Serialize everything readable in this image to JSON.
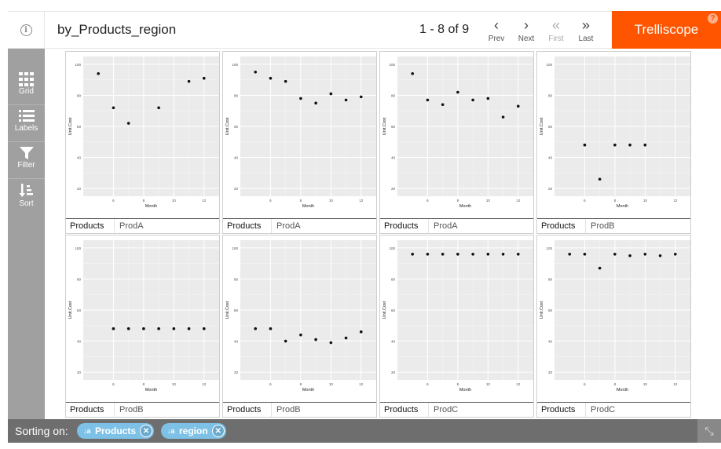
{
  "header": {
    "info_icon": "info-icon",
    "title": "by_Products_region",
    "pagination": "1 - 8 of 9",
    "nav": [
      {
        "name": "prev",
        "glyph": "‹",
        "label": "Prev",
        "enabled": true
      },
      {
        "name": "next",
        "glyph": "›",
        "label": "Next",
        "enabled": true
      },
      {
        "name": "first",
        "glyph": "«",
        "label": "First",
        "enabled": false
      },
      {
        "name": "last",
        "glyph": "»",
        "label": "Last",
        "enabled": true
      }
    ],
    "brand": "Trelliscope",
    "help": "?"
  },
  "sidebar": {
    "items": [
      {
        "name": "grid",
        "icon": "grid-icon",
        "label": "Grid"
      },
      {
        "name": "labels",
        "icon": "list-icon",
        "label": "Labels"
      },
      {
        "name": "filter",
        "icon": "filter-icon",
        "label": "Filter"
      },
      {
        "name": "sort",
        "icon": "sort-icon",
        "label": "Sort"
      }
    ]
  },
  "panels": [
    {
      "label_key": "Products",
      "label_value": "ProdA"
    },
    {
      "label_key": "Products",
      "label_value": "ProdA"
    },
    {
      "label_key": "Products",
      "label_value": "ProdA"
    },
    {
      "label_key": "Products",
      "label_value": "ProdB"
    },
    {
      "label_key": "Products",
      "label_value": "ProdB"
    },
    {
      "label_key": "Products",
      "label_value": "ProdB"
    },
    {
      "label_key": "Products",
      "label_value": "ProdC"
    },
    {
      "label_key": "Products",
      "label_value": "ProdC"
    }
  ],
  "chart_data": [
    {
      "type": "scatter",
      "xlabel": "Month",
      "ylabel": "Unit.Cost",
      "xlim": [
        4,
        13
      ],
      "ylim": [
        15,
        105
      ],
      "xticks": [
        6,
        8,
        10,
        12
      ],
      "yticks": [
        20,
        40,
        60,
        80,
        100
      ],
      "grid": true,
      "points": [
        [
          5,
          94
        ],
        [
          6,
          72
        ],
        [
          7,
          62
        ],
        [
          9,
          72
        ],
        [
          11,
          89
        ],
        [
          12,
          91
        ]
      ]
    },
    {
      "type": "scatter",
      "xlabel": "Month",
      "ylabel": "Unit.Cost",
      "xlim": [
        4,
        13
      ],
      "ylim": [
        15,
        105
      ],
      "xticks": [
        6,
        8,
        10,
        12
      ],
      "yticks": [
        20,
        40,
        60,
        80,
        100
      ],
      "grid": true,
      "points": [
        [
          5,
          95
        ],
        [
          6,
          91
        ],
        [
          7,
          89
        ],
        [
          8,
          78
        ],
        [
          9,
          75
        ],
        [
          10,
          81
        ],
        [
          11,
          77
        ],
        [
          12,
          79
        ]
      ]
    },
    {
      "type": "scatter",
      "xlabel": "Month",
      "ylabel": "Unit.Cost",
      "xlim": [
        4,
        13
      ],
      "ylim": [
        15,
        105
      ],
      "xticks": [
        6,
        8,
        10,
        12
      ],
      "yticks": [
        20,
        40,
        60,
        80,
        100
      ],
      "grid": true,
      "points": [
        [
          5,
          94
        ],
        [
          6,
          77
        ],
        [
          7,
          74
        ],
        [
          8,
          82
        ],
        [
          9,
          77
        ],
        [
          10,
          78
        ],
        [
          11,
          66
        ],
        [
          12,
          73
        ]
      ]
    },
    {
      "type": "scatter",
      "xlabel": "Month",
      "ylabel": "Unit.Cost",
      "xlim": [
        4,
        13
      ],
      "ylim": [
        15,
        105
      ],
      "xticks": [
        6,
        8,
        10,
        12
      ],
      "yticks": [
        20,
        40,
        60,
        80,
        100
      ],
      "grid": true,
      "points": [
        [
          6,
          48
        ],
        [
          7,
          26
        ],
        [
          8,
          48
        ],
        [
          9,
          48
        ],
        [
          10,
          48
        ]
      ]
    },
    {
      "type": "scatter",
      "xlabel": "Month",
      "ylabel": "Unit.Cost",
      "xlim": [
        4,
        13
      ],
      "ylim": [
        15,
        105
      ],
      "xticks": [
        6,
        8,
        10,
        12
      ],
      "yticks": [
        20,
        40,
        60,
        80,
        100
      ],
      "grid": true,
      "points": [
        [
          6,
          48
        ],
        [
          7,
          48
        ],
        [
          8,
          48
        ],
        [
          9,
          48
        ],
        [
          10,
          48
        ],
        [
          11,
          48
        ],
        [
          12,
          48
        ]
      ]
    },
    {
      "type": "scatter",
      "xlabel": "Month",
      "ylabel": "Unit.Cost",
      "xlim": [
        4,
        13
      ],
      "ylim": [
        15,
        105
      ],
      "xticks": [
        6,
        8,
        10,
        12
      ],
      "yticks": [
        20,
        40,
        60,
        80,
        100
      ],
      "grid": true,
      "points": [
        [
          5,
          48
        ],
        [
          6,
          48
        ],
        [
          7,
          40
        ],
        [
          8,
          44
        ],
        [
          9,
          41
        ],
        [
          10,
          39
        ],
        [
          11,
          42
        ],
        [
          12,
          46
        ]
      ]
    },
    {
      "type": "scatter",
      "xlabel": "Month",
      "ylabel": "Unit.Cost",
      "xlim": [
        4,
        13
      ],
      "ylim": [
        15,
        105
      ],
      "xticks": [
        6,
        8,
        10,
        12
      ],
      "yticks": [
        20,
        40,
        60,
        80,
        100
      ],
      "grid": true,
      "points": [
        [
          5,
          96
        ],
        [
          6,
          96
        ],
        [
          7,
          96
        ],
        [
          8,
          96
        ],
        [
          9,
          96
        ],
        [
          10,
          96
        ],
        [
          11,
          96
        ],
        [
          12,
          96
        ]
      ]
    },
    {
      "type": "scatter",
      "xlabel": "Month",
      "ylabel": "Unit.Cost",
      "xlim": [
        4,
        13
      ],
      "ylim": [
        15,
        105
      ],
      "xticks": [
        6,
        8,
        10,
        12
      ],
      "yticks": [
        20,
        40,
        60,
        80,
        100
      ],
      "grid": true,
      "points": [
        [
          5,
          96
        ],
        [
          6,
          96
        ],
        [
          7,
          87
        ],
        [
          8,
          96
        ],
        [
          9,
          95
        ],
        [
          10,
          96
        ],
        [
          11,
          95
        ],
        [
          12,
          96
        ]
      ]
    }
  ],
  "footer": {
    "sorting_label": "Sorting on:",
    "chips": [
      {
        "label": "Products",
        "sort_icon": "sort-ascending-icon",
        "sort_glyph": "↓a",
        "remove_icon": "close-icon"
      },
      {
        "label": "region",
        "sort_icon": "sort-ascending-icon",
        "sort_glyph": "↓a",
        "remove_icon": "close-icon"
      }
    ],
    "expand_icon": "expand-icon"
  },
  "colors": {
    "brand": "#ff5500",
    "sidebar": "#a0a0a0",
    "footer": "#6e6e6e",
    "chip": "#7ec1e6",
    "plot_bg": "#ebebeb"
  }
}
